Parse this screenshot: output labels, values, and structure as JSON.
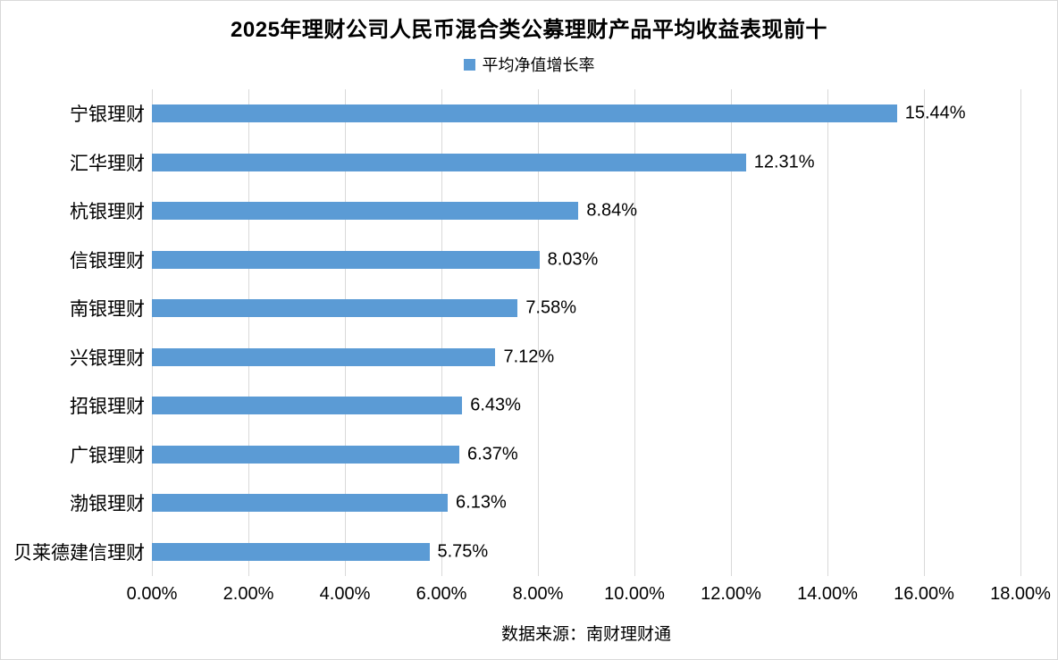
{
  "title": "2025年理财公司人民币混合类公募理财产品平均收益表现前十",
  "legend": {
    "label": "平均净值增长率",
    "color": "#5b9bd5"
  },
  "source_note": "数据来源：南财理财通",
  "chart_data": {
    "type": "bar",
    "orientation": "horizontal",
    "title": "2025年理财公司人民币混合类公募理财产品平均收益表现前十",
    "series_name": "平均净值增长率",
    "categories": [
      "宁银理财",
      "汇华理财",
      "杭银理财",
      "信银理财",
      "南银理财",
      "兴银理财",
      "招银理财",
      "广银理财",
      "渤银理财",
      "贝莱德建信理财"
    ],
    "values": [
      15.44,
      12.31,
      8.84,
      8.03,
      7.58,
      7.12,
      6.43,
      6.37,
      6.13,
      5.75
    ],
    "data_labels": [
      "15.44%",
      "12.31%",
      "8.84%",
      "8.03%",
      "7.58%",
      "7.12%",
      "6.43%",
      "6.37%",
      "6.13%",
      "5.75%"
    ],
    "xlabel": "",
    "ylabel": "",
    "x_ticks": [
      "0.00%",
      "2.00%",
      "4.00%",
      "6.00%",
      "8.00%",
      "10.00%",
      "12.00%",
      "14.00%",
      "16.00%",
      "18.00%"
    ],
    "xlim": [
      0,
      18
    ],
    "grid": true,
    "legend_position": "top",
    "bar_color": "#5b9bd5",
    "gridline_color": "#d9d9d9",
    "label_color": "#000000"
  }
}
